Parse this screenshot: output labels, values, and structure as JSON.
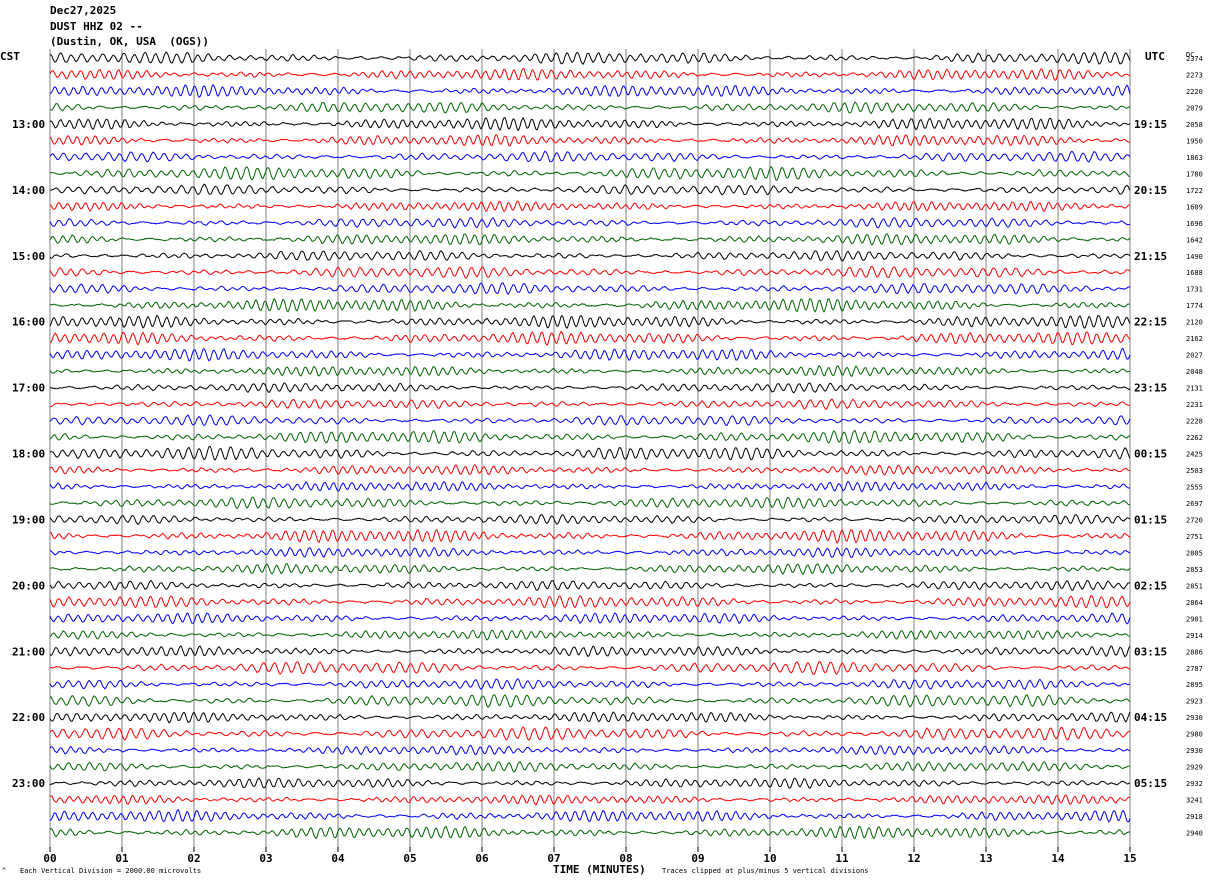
{
  "header": {
    "date": "Dec27,2025",
    "station": "DUST HHZ 02 --",
    "location": "(Dustin, OK, USA  (OGS))"
  },
  "left_timezone": "CST",
  "right_timezone": "UTC",
  "dc_label": "DC",
  "footer": {
    "scale_note": "Each Vertical Division = 2000.00 microvolts",
    "clip_note": "Traces clipped at plus/minus 5 vertical divisions",
    "marker": "^"
  },
  "colors": {
    "trace_cycle": [
      "#000000",
      "#ff0000",
      "#0000ff",
      "#006400"
    ],
    "grid": "#808080"
  },
  "chart_data": {
    "type": "line",
    "xlabel": "TIME (MINUTES)",
    "x_range": [
      0,
      15
    ],
    "x_ticks": [
      "00",
      "01",
      "02",
      "03",
      "04",
      "05",
      "06",
      "07",
      "08",
      "09",
      "10",
      "11",
      "12",
      "13",
      "14",
      "15"
    ],
    "trace_count": 48,
    "trace_interval_minutes": 15,
    "left_hour_labels": [
      "13:00",
      "14:00",
      "15:00",
      "16:00",
      "17:00",
      "18:00",
      "19:00",
      "20:00",
      "21:00",
      "22:00",
      "23:00"
    ],
    "right_hour_labels": [
      "19:15",
      "20:15",
      "21:15",
      "22:15",
      "23:15",
      "00:15",
      "01:15",
      "02:15",
      "03:15",
      "04:15",
      "05:15"
    ],
    "dc_offsets": [
      2374,
      2273,
      2220,
      2079,
      2058,
      1950,
      1863,
      1780,
      1722,
      1609,
      1696,
      1642,
      1490,
      1688,
      1731,
      1774,
      2120,
      2162,
      2027,
      2048,
      2131,
      2231,
      2228,
      2262,
      2425,
      2503,
      2555,
      2697,
      2720,
      2751,
      2805,
      2853,
      2851,
      2864,
      2901,
      2914,
      2886,
      2787,
      2895,
      2923,
      2930,
      2980,
      2930,
      2929,
      2932,
      3241,
      2918,
      2940
    ]
  }
}
